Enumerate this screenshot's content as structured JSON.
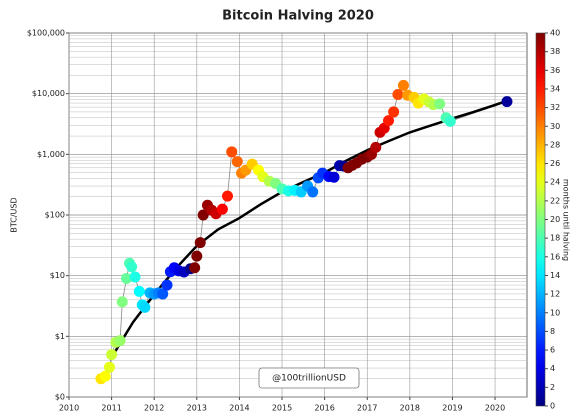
{
  "chart_data": {
    "type": "scatter",
    "title": "Bitcoin Halving 2020",
    "y_label": "BTC/USD",
    "colorbar_label": "months until halving",
    "annotation": "@100trillionUSD",
    "log_y": true,
    "grid": true,
    "minor_grid": true,
    "colormap": "jet",
    "xlim": [
      2010,
      2020.75
    ],
    "xticks": [
      2010,
      2011,
      2012,
      2013,
      2014,
      2015,
      2016,
      2017,
      2018,
      2019,
      2020
    ],
    "ylim": [
      0.1,
      100000
    ],
    "yticks": [
      {
        "value": 0.1,
        "label": "$0"
      },
      {
        "value": 1,
        "label": "$1"
      },
      {
        "value": 10,
        "label": "$10"
      },
      {
        "value": 100,
        "label": "$100"
      },
      {
        "value": 1000,
        "label": "$1,000"
      },
      {
        "value": 10000,
        "label": "$10,000"
      },
      {
        "value": 100000,
        "label": "$100,000"
      }
    ],
    "clim": [
      0,
      40
    ],
    "cticks": [
      0,
      2,
      4,
      6,
      8,
      10,
      12,
      14,
      16,
      18,
      20,
      22,
      24,
      26,
      28,
      30,
      32,
      34,
      36,
      38,
      40
    ],
    "price_line_color": "#888888",
    "curve": {
      "color": "#000000",
      "x": [
        2011.0,
        2011.5,
        2012.0,
        2012.5,
        2013.0,
        2013.5,
        2014.0,
        2014.5,
        2015.0,
        2015.5,
        2016.0,
        2016.5,
        2017.0,
        2017.5,
        2018.0,
        2018.5,
        2019.0,
        2019.5,
        2020.0,
        2020.3
      ],
      "y": [
        0.45,
        1.7,
        4.9,
        13,
        31,
        58,
        89,
        150,
        240,
        350,
        500,
        780,
        1170,
        1650,
        2300,
        3000,
        3900,
        5000,
        6500,
        7700
      ]
    },
    "x": [
      2010.75,
      2010.85,
      2010.95,
      2011.0,
      2011.1,
      2011.2,
      2011.25,
      2011.35,
      2011.42,
      2011.47,
      2011.55,
      2011.65,
      2011.72,
      2011.78,
      2011.9,
      2012.0,
      2012.1,
      2012.2,
      2012.3,
      2012.38,
      2012.47,
      2012.58,
      2012.7,
      2012.85,
      2012.95,
      2013.0,
      2013.08,
      2013.15,
      2013.25,
      2013.35,
      2013.45,
      2013.6,
      2013.72,
      2013.82,
      2013.95,
      2014.05,
      2014.15,
      2014.3,
      2014.45,
      2014.55,
      2014.7,
      2014.85,
      2015.0,
      2015.15,
      2015.3,
      2015.45,
      2015.6,
      2015.72,
      2015.85,
      2015.95,
      2016.1,
      2016.22,
      2016.35,
      2016.45,
      2016.55,
      2016.65,
      2016.75,
      2016.87,
      2017.0,
      2017.1,
      2017.2,
      2017.3,
      2017.4,
      2017.5,
      2017.62,
      2017.72,
      2017.85,
      2017.95,
      2018.1,
      2018.2,
      2018.33,
      2018.45,
      2018.55,
      2018.7,
      2018.85,
      2018.95,
      2020.28
    ],
    "y": [
      0.2,
      0.22,
      0.31,
      0.5,
      0.8,
      0.85,
      3.7,
      9,
      16,
      14,
      9.5,
      5.5,
      3.3,
      3,
      5.2,
      5,
      5.2,
      5,
      7,
      11.6,
      13.5,
      12,
      11.5,
      13,
      13.5,
      21,
      35,
      100,
      145,
      120,
      105,
      125,
      205,
      1100,
      760,
      490,
      550,
      690,
      550,
      430,
      360,
      330,
      270,
      250,
      255,
      240,
      300,
      240,
      410,
      490,
      430,
      420,
      650,
      640,
      600,
      660,
      720,
      830,
      900,
      1000,
      1300,
      2300,
      2700,
      3600,
      5000,
      9700,
      13700,
      9400,
      8700,
      7000,
      8200,
      7300,
      6600,
      6800,
      4000,
      3500,
      7400
    ],
    "months": [
      26,
      25,
      24,
      23,
      22,
      21,
      20,
      19,
      18,
      17,
      16,
      15,
      14,
      13.5,
      12,
      11,
      10,
      8.5,
      7,
      6,
      5,
      4,
      2.5,
      0.7,
      40,
      40,
      40,
      40,
      39,
      38,
      37,
      35,
      34,
      32,
      31,
      30,
      29,
      27,
      25,
      24,
      22,
      20,
      18,
      16,
      14.5,
      13,
      11,
      9.5,
      8,
      7,
      5,
      3.6,
      2,
      0.8,
      40,
      40,
      40,
      40,
      40,
      39,
      38,
      37,
      36,
      34,
      33,
      32,
      30,
      29,
      27,
      26,
      24,
      23,
      22,
      20,
      18,
      17,
      1
    ]
  }
}
